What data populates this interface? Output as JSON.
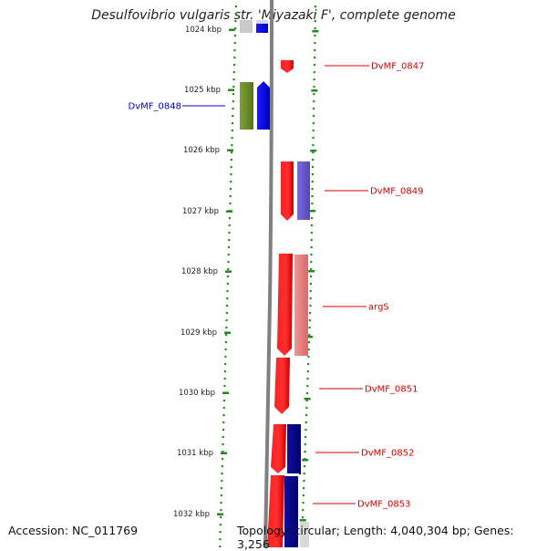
{
  "map": {
    "title": "Desulfovibrio vulgaris str. 'Miyazaki F', complete genome",
    "accession": "Accession: NC_011769",
    "topology": "Topology: circular; Length: 4,040,304 bp; Genes: 3,256"
  },
  "ruler": {
    "unit": "kbp",
    "ticks": [
      "1024 kbp",
      "1025 kbp",
      "1026 kbp",
      "1027 kbp",
      "1028 kbp",
      "1029 kbp",
      "1030 kbp",
      "1031 kbp",
      "1032 kbp"
    ]
  },
  "gene_labels": [
    {
      "text": "DvMF_0847",
      "side": "right",
      "color": "#d40000"
    },
    {
      "text": "DvMF_0848",
      "side": "left",
      "color": "#0000cc"
    },
    {
      "text": "DvMF_0849",
      "side": "right",
      "color": "#d40000"
    },
    {
      "text": "argS",
      "side": "right",
      "color": "#d40000"
    },
    {
      "text": "DvMF_0851",
      "side": "right",
      "color": "#d40000"
    },
    {
      "text": "DvMF_0852",
      "side": "right",
      "color": "#d40000"
    },
    {
      "text": "DvMF_0853",
      "side": "right",
      "color": "#d40000"
    }
  ],
  "colors": {
    "forward_cds": "#ff0000",
    "reverse_cds": "#0000ff",
    "rna": "#6b8e23",
    "cog_violet": "#6a5acd",
    "cog_pink": "#e88080",
    "cog_navy": "#00008b",
    "ticks": "#228b22",
    "backbone": "#808080"
  }
}
